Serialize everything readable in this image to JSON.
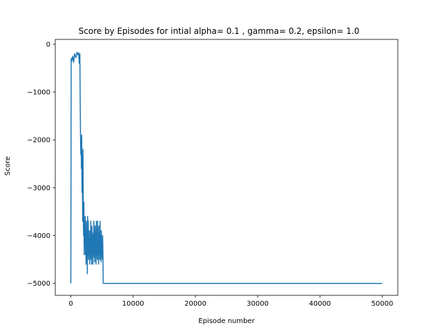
{
  "chart_data": {
    "type": "line",
    "title": "Score by Episodes for intial alpha= 0.1 , gamma= 0.2, epsilon= 1.0",
    "xlabel": "Episode number",
    "ylabel": "Score",
    "xlim": [
      -2500,
      52500
    ],
    "ylim": [
      -5250,
      100
    ],
    "xticks": [
      0,
      10000,
      20000,
      30000,
      40000,
      50000
    ],
    "xtick_labels": [
      "0",
      "10000",
      "20000",
      "30000",
      "40000",
      "50000"
    ],
    "yticks": [
      0,
      -1000,
      -2000,
      -3000,
      -4000,
      -5000
    ],
    "ytick_labels": [
      "0",
      "−1000",
      "−2000",
      "−3000",
      "−4000",
      "−5000"
    ],
    "grid": false,
    "line_color": "#1f77b4",
    "series": [
      {
        "x": [
          0,
          60,
          150,
          300,
          450,
          600,
          800,
          1000,
          1150,
          1250,
          1350,
          1450,
          1520,
          1560,
          1600,
          1650,
          1700,
          1750,
          1800,
          1850,
          1900,
          1950,
          2000,
          2050,
          2100,
          2150,
          2200,
          2250,
          2300,
          2350,
          2400,
          2450,
          2500,
          2550,
          2600,
          2650,
          2700,
          2750,
          2800,
          2850,
          2900,
          2950,
          3000,
          3050,
          3100,
          3150,
          3200,
          3250,
          3300,
          3350,
          3400,
          3450,
          3500,
          3550,
          3600,
          3650,
          3700,
          3750,
          3800,
          3850,
          3900,
          3950,
          4000,
          4050,
          4100,
          4150,
          4200,
          4250,
          4300,
          4350,
          4400,
          4450,
          4500,
          4550,
          4600,
          4650,
          4700,
          4750,
          4800,
          4850,
          4900,
          4950,
          5000,
          5050,
          5100,
          5150,
          5200,
          10000,
          20000,
          30000,
          40000,
          50000
        ],
        "y": [
          -5000,
          -300,
          -350,
          -250,
          -380,
          -200,
          -280,
          -170,
          -220,
          -180,
          -400,
          -200,
          -1400,
          -1950,
          -2300,
          -2000,
          -2600,
          -1900,
          -3100,
          -2300,
          -3700,
          -2200,
          -3500,
          -4000,
          -3300,
          -4400,
          -3700,
          -4200,
          -3600,
          -4400,
          -3800,
          -4600,
          -3700,
          -4400,
          -4000,
          -4800,
          -3600,
          -4300,
          -3700,
          -4500,
          -3900,
          -4400,
          -4200,
          -4600,
          -3900,
          -4400,
          -3700,
          -4500,
          -4000,
          -4600,
          -3800,
          -4350,
          -3950,
          -4600,
          -4100,
          -4300,
          -3700,
          -4450,
          -4000,
          -4550,
          -3800,
          -4300,
          -4100,
          -4600,
          -3700,
          -4400,
          -4050,
          -4500,
          -3700,
          -4350,
          -4150,
          -4600,
          -3800,
          -4400,
          -4000,
          -4500,
          -3700,
          -4300,
          -4200,
          -4550,
          -3900,
          -4400,
          -4100,
          -4500,
          -4000,
          -4300,
          -5000,
          -5000,
          -5000,
          -5000,
          -5000,
          -5000
        ]
      }
    ]
  }
}
